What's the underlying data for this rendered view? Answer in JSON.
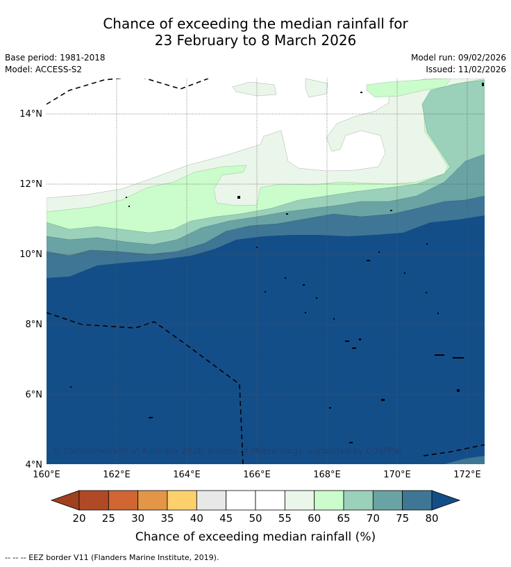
{
  "title_line1": "Chance of exceeding the median rainfall for",
  "title_line2": "23 February to 8 March 2026",
  "base_period": "Base period: 1981-2018",
  "model": "Model: ACCESS-S2",
  "model_run": "Model run: 09/02/2026",
  "issued": "Issued: 11/02/2026",
  "copyright": "© Commonwealth of Australia 2026, Bureau of Meteorology, supported by COSPPac",
  "lat_ticks": [
    "14°N",
    "12°N",
    "10°N",
    "8°N",
    "6°N",
    "4°N"
  ],
  "lon_ticks": [
    "160°E",
    "162°E",
    "164°E",
    "166°E",
    "168°E",
    "170°E",
    "172°E"
  ],
  "colorbar": {
    "ticks": [
      "20",
      "25",
      "30",
      "35",
      "40",
      "45",
      "50",
      "55",
      "60",
      "65",
      "70",
      "75",
      "80"
    ],
    "colors": [
      "#b04a26",
      "#cf6633",
      "#e29646",
      "#fdd06c",
      "#e8e8e8",
      "#ffffff",
      "#ffffff",
      "#eaf6ea",
      "#cbfccb",
      "#9bd0ba",
      "#6aa3a4",
      "#3f7696"
    ],
    "under_color": "#a0401e",
    "over_color": "#144e89",
    "label": "Chance of exceeding median rainfall (%)"
  },
  "footer": "--  --  -- EEZ border V11 (Flanders Marine Institute, 2019)."
}
